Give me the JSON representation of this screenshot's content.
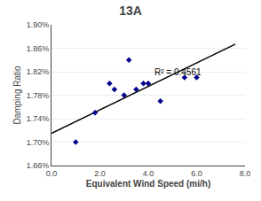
{
  "chart_data": {
    "type": "scatter",
    "title": "13A",
    "xlabel": "Equivalent Wind Speed (mi/h)",
    "ylabel": "Damping Ratio",
    "xlim": [
      0.0,
      8.0
    ],
    "ylim": [
      0.0166,
      0.019
    ],
    "xticks": [
      {
        "value": 0.0,
        "label": "0.0"
      },
      {
        "value": 2.0,
        "label": "2.0"
      },
      {
        "value": 4.0,
        "label": "4.0"
      },
      {
        "value": 6.0,
        "label": "6.0"
      },
      {
        "value": 8.0,
        "label": "8.0"
      }
    ],
    "yticks": [
      {
        "value": 0.0166,
        "label": "1.66%"
      },
      {
        "value": 0.017,
        "label": "1.70%"
      },
      {
        "value": 0.0174,
        "label": "1.74%"
      },
      {
        "value": 0.0178,
        "label": "1.78%"
      },
      {
        "value": 0.0182,
        "label": "1.82%"
      },
      {
        "value": 0.0186,
        "label": "1.86%"
      },
      {
        "value": 0.019,
        "label": "1.90%"
      }
    ],
    "grid": true,
    "series": [
      {
        "type": "scatter",
        "marker": "diamond",
        "color": "#00008B",
        "x": [
          1.0,
          1.8,
          2.4,
          2.6,
          3.0,
          3.2,
          3.5,
          3.8,
          4.0,
          4.5,
          5.5,
          6.0
        ],
        "values": [
          0.017,
          0.0175,
          0.018,
          0.0179,
          0.0178,
          0.0184,
          0.0179,
          0.018,
          0.018,
          0.0177,
          0.0181,
          0.0181
        ]
      },
      {
        "type": "line",
        "color": "#000000",
        "x": [
          0.0,
          7.6
        ],
        "values": [
          0.01715,
          0.01867
        ]
      }
    ],
    "annotations": [
      {
        "text": "R² = 0.4561",
        "x": 4.2,
        "y": 0.01808
      }
    ]
  }
}
